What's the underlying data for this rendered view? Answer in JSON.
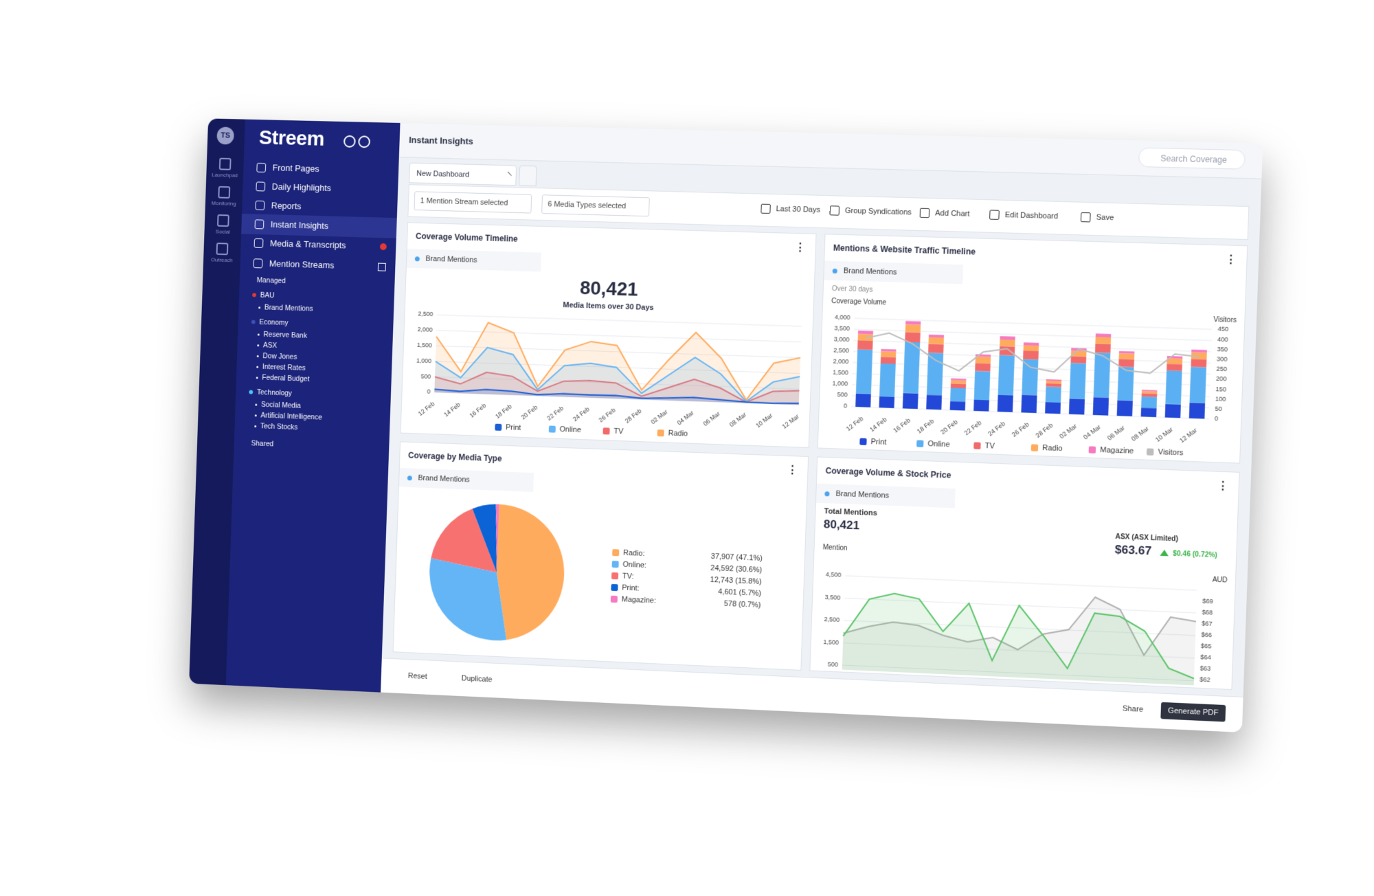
{
  "sidebar": {
    "avatar": "TS",
    "rail": [
      "Launchpad",
      "Monitoring",
      "Social",
      "Outreach"
    ],
    "brand": "Streem",
    "nav": [
      "Front Pages",
      "Daily Highlights",
      "Reports",
      "Instant Insights",
      "Media & Transcripts",
      "Mention Streams"
    ],
    "managed": "Managed",
    "groups": [
      {
        "label": "BAU",
        "color": "#e53935",
        "children": [
          "Brand Mentions"
        ]
      },
      {
        "label": "Economy",
        "color": "#3f51b5",
        "children": [
          "Reserve Bank",
          "ASX",
          "Dow Jones",
          "Interest Rates",
          "Federal Budget"
        ]
      },
      {
        "label": "Technology",
        "color": "#4fc3f7",
        "children": [
          "Social Media",
          "Artificial Intelligence",
          "Tech Stocks"
        ]
      }
    ],
    "shared": "Shared"
  },
  "header": {
    "title": "Instant Insights",
    "search": "Search Coverage"
  },
  "tabs": [
    "New Dashboard"
  ],
  "toolbar": {
    "filters": [
      "1 Mention Stream selected",
      "6 Media Types selected"
    ],
    "actions": [
      "Last 30 Days",
      "Group Syndications",
      "Add Chart",
      "Edit Dashboard",
      "Save"
    ]
  },
  "footer": {
    "left": [
      "Reset",
      "Duplicate"
    ],
    "share": "Share",
    "pdf": "Generate PDF"
  },
  "chart_data": [
    {
      "type": "area",
      "title": "Coverage Volume Timeline",
      "filter": "Brand Mentions",
      "total": "80,421",
      "subtitle": "Media Items over 30 Days",
      "categories": [
        "12 Feb",
        "14 Feb",
        "16 Feb",
        "18 Feb",
        "20 Feb",
        "22 Feb",
        "24 Feb",
        "26 Feb",
        "28 Feb",
        "02 Mar",
        "04 Mar",
        "06 Mar",
        "08 Mar",
        "10 Mar",
        "12 Mar"
      ],
      "series": [
        {
          "name": "Print",
          "color": "#1a5fd6",
          "values": [
            100,
            60,
            150,
            120,
            40,
            100,
            90,
            100,
            40,
            80,
            120,
            80,
            30,
            20,
            50
          ]
        },
        {
          "name": "Online",
          "color": "#64b5f6",
          "values": [
            1000,
            500,
            1500,
            1300,
            200,
            1000,
            1100,
            1000,
            200,
            800,
            1400,
            900,
            50,
            700,
            900
          ]
        },
        {
          "name": "TV",
          "color": "#f26b6b",
          "values": [
            500,
            300,
            700,
            600,
            150,
            500,
            550,
            500,
            100,
            400,
            700,
            450,
            30,
            400,
            450
          ]
        },
        {
          "name": "Radio",
          "color": "#ffab5e",
          "values": [
            1800,
            700,
            2300,
            2000,
            300,
            1500,
            1800,
            1700,
            300,
            1300,
            2200,
            1400,
            100,
            1300,
            1500
          ]
        }
      ],
      "ylim": [
        0,
        2500
      ],
      "yticks": [
        0,
        500,
        {
          "value": 1000,
          "label": "1,000"
        },
        {
          "value": 1500,
          "label": "1,500"
        },
        {
          "value": 2000,
          "label": "2,000"
        },
        {
          "value": 2500,
          "label": "2,500"
        }
      ],
      "grid": true
    },
    {
      "type": "bar",
      "title": "Mentions & Website Traffic Timeline",
      "filter": "Brand Mentions",
      "subtitle": "Over 30 days",
      "ylabel": "Coverage Volume",
      "y2label": "Visitors",
      "stacked": true,
      "categories": [
        "12 Feb",
        "14 Feb",
        "16 Feb",
        "18 Feb",
        "20 Feb",
        "22 Feb",
        "24 Feb",
        "26 Feb",
        "28 Feb",
        "02 Mar",
        "04 Mar",
        "06 Mar",
        "08 Mar",
        "10 Mar",
        "12 Mar"
      ],
      "series": [
        {
          "name": "Print",
          "color": "#2347d6",
          "values": [
            600,
            500,
            700,
            650,
            400,
            500,
            750,
            800,
            500,
            700,
            800,
            700,
            400,
            600,
            700
          ]
        },
        {
          "name": "Online",
          "color": "#5ab0f2",
          "values": [
            2000,
            1500,
            2300,
            1900,
            600,
            1300,
            1800,
            1600,
            700,
            1600,
            2000,
            1500,
            500,
            1500,
            1600
          ]
        },
        {
          "name": "TV",
          "color": "#f26b6b",
          "values": [
            400,
            300,
            450,
            400,
            200,
            350,
            400,
            380,
            150,
            300,
            400,
            350,
            150,
            300,
            350
          ]
        },
        {
          "name": "Radio",
          "color": "#ffab5e",
          "values": [
            300,
            250,
            350,
            300,
            150,
            300,
            300,
            250,
            120,
            250,
            300,
            250,
            100,
            250,
            300
          ]
        },
        {
          "name": "Magazine",
          "color": "#f67ac0",
          "values": [
            150,
            100,
            150,
            120,
            80,
            100,
            150,
            120,
            60,
            120,
            150,
            100,
            50,
            100,
            120
          ]
        },
        {
          "name": "Visitors",
          "color": "#bdbdbd",
          "axis": "y2",
          "values": [
            350,
            380,
            330,
            250,
            200,
            300,
            320,
            230,
            210,
            330,
            300,
            230,
            220,
            320,
            310
          ]
        }
      ],
      "ylim": [
        0,
        4000
      ],
      "yticks": [
        0,
        500,
        {
          "value": 1000,
          "label": "1,000"
        },
        {
          "value": 1500,
          "label": "1,500"
        },
        {
          "value": 2000,
          "label": "2,000"
        },
        {
          "value": 2500,
          "label": "2,500"
        },
        {
          "value": 3000,
          "label": "3,000"
        },
        {
          "value": 3500,
          "label": "3,500"
        },
        {
          "value": 4000,
          "label": "4,000"
        }
      ],
      "y2lim": [
        0,
        450
      ],
      "y2ticks": [
        0,
        50,
        100,
        150,
        200,
        250,
        300,
        350,
        400,
        450
      ],
      "grid": true
    },
    {
      "type": "pie",
      "title": "Coverage by Media Type",
      "filter": "Brand Mentions",
      "categories": [
        "Radio:",
        "Online:",
        "TV:",
        "Print:",
        "Magazine:"
      ],
      "values": [
        37907,
        24592,
        12743,
        4601,
        578
      ],
      "value_labels": [
        "37,907 (47.1%)",
        "24,592 (30.6%)",
        "12,743 (15.8%)",
        "4,601 (5.7%)",
        "578 (0.7%)"
      ],
      "colors": [
        "#ffab5e",
        "#64b5f6",
        "#f87171",
        "#0b63d6",
        "#f67ac0"
      ]
    },
    {
      "type": "line",
      "title": "Coverage Volume & Stock Price",
      "filter": "Brand Mentions",
      "total_label": "Total Mentions",
      "total": "80,421",
      "ylabel": "Mention",
      "y2label": "AUD",
      "stock": {
        "name": "ASX (ASX Limited)",
        "price": "$63.67",
        "change": "$0.46 (0.72%)"
      },
      "categories": [
        null,
        null,
        null,
        null,
        null,
        null,
        null,
        null,
        null,
        null,
        null,
        null,
        null,
        null,
        null
      ],
      "series": [
        {
          "color": "#5cc46a",
          "values": [
            1800,
            3500,
            3800,
            3600,
            2200,
            3500,
            1000,
            3500,
            2200,
            800,
            3300,
            3200,
            2600,
            1000,
            600
          ]
        },
        {
          "color": "#b0b0b0",
          "axis": "y2",
          "values": [
            64.8,
            65.5,
            66,
            65.8,
            65,
            64.5,
            65,
            64,
            65.5,
            66,
            69,
            68,
            64,
            67.5,
            67.2
          ]
        }
      ],
      "ylim": [
        300,
        4500
      ],
      "yticks": [
        500,
        {
          "value": 1500,
          "label": "1,500"
        },
        {
          "value": 2500,
          "label": "2,500"
        },
        {
          "value": 3500,
          "label": "3,500"
        },
        {
          "value": 4500,
          "label": "4,500"
        }
      ],
      "y2lim": [
        61.5,
        70
      ],
      "y2ticks": [
        {
          "value": 62,
          "label": "$62"
        },
        {
          "value": 63,
          "label": "$63"
        },
        {
          "value": 64,
          "label": "$64"
        },
        {
          "value": 65,
          "label": "$65"
        },
        {
          "value": 66,
          "label": "$66"
        },
        {
          "value": 67,
          "label": "$67"
        },
        {
          "value": 68,
          "label": "$68"
        },
        {
          "value": 69,
          "label": "$69"
        }
      ],
      "grid": true
    }
  ]
}
